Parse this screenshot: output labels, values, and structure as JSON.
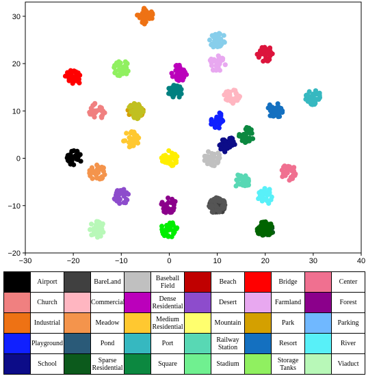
{
  "chart_data": {
    "type": "scatter",
    "title": "",
    "xlabel": "",
    "ylabel": "",
    "xlim": [
      -30,
      40
    ],
    "ylim": [
      -20,
      33
    ],
    "xticks": [
      "−30",
      "−20",
      "−10",
      "0",
      "10",
      "20",
      "30",
      "40"
    ],
    "yticks": [
      "−20",
      "−10",
      "0",
      "10",
      "20",
      "30"
    ],
    "grid": false,
    "legend": "table-below",
    "classes": [
      {
        "name": "Airport",
        "color": "#000000",
        "cx": -20,
        "cy": 0,
        "plotted": true
      },
      {
        "name": "BareLand",
        "color": "#404040",
        "cx": 10,
        "cy": -10,
        "plotted": true
      },
      {
        "name": "Baseball\nField",
        "color": "#c0c0c0",
        "cx": 9,
        "cy": 0,
        "plotted": true
      },
      {
        "name": "Beach",
        "color": "#c00000",
        "plotted": false
      },
      {
        "name": "Bridge",
        "color": "#ff0000",
        "cx": -20,
        "cy": 17,
        "plotted": true
      },
      {
        "name": "Center",
        "color": "#f07090",
        "cx": 25,
        "cy": -3,
        "plotted": true
      },
      {
        "name": "Church",
        "color": "#f08080",
        "cx": -15,
        "cy": 10,
        "plotted": true
      },
      {
        "name": "Commercial",
        "color": "#ffb6c1",
        "cx": 13,
        "cy": 13,
        "plotted": true
      },
      {
        "name": "Dense\nResidential",
        "color": "#bb00bb",
        "cx": 2,
        "cy": 18,
        "plotted": true
      },
      {
        "name": "Desert",
        "color": "#8d4ccc",
        "cx": -10,
        "cy": -8,
        "plotted": true
      },
      {
        "name": "Farmland",
        "color": "#e8a8f0",
        "cx": 10,
        "cy": 20,
        "plotted": true
      },
      {
        "name": "Forest",
        "color": "#8b008b",
        "cx": 0,
        "cy": -10,
        "plotted": true
      },
      {
        "name": "Industrial",
        "color": "#ee7214",
        "cx": -5,
        "cy": 30,
        "plotted": true
      },
      {
        "name": "Meadow",
        "color": "#f4944c",
        "cx": -15,
        "cy": -3,
        "plotted": true
      },
      {
        "name": "Medium\nResidential",
        "color": "#ffc830",
        "cx": -8,
        "cy": 4,
        "plotted": true
      },
      {
        "name": "Mountain",
        "color": "#ffff6e",
        "plotted": false
      },
      {
        "name": "Park",
        "color": "#d4a000",
        "cx": -7,
        "cy": 10,
        "plotted": true
      },
      {
        "name": "Parking",
        "color": "#70b8ff",
        "plotted": false
      },
      {
        "name": "Playground",
        "color": "#1020ff",
        "cx": 10,
        "cy": 8,
        "plotted": true
      },
      {
        "name": "Pond",
        "color": "#2a5a78",
        "plotted": false
      },
      {
        "name": "Port",
        "color": "#36b8c0",
        "cx": 30,
        "cy": 13,
        "plotted": true
      },
      {
        "name": "Railway\nStation",
        "color": "#58d8b4",
        "cx": 15,
        "cy": -5,
        "plotted": true
      },
      {
        "name": "Resort",
        "color": "#1470c0",
        "cx": 22,
        "cy": 10,
        "plotted": true
      },
      {
        "name": "River",
        "color": "#58f0f8",
        "cx": 20,
        "cy": -8,
        "plotted": true
      },
      {
        "name": "School",
        "color": "#0c0c88",
        "cx": 12,
        "cy": 3,
        "plotted": true
      },
      {
        "name": "Sparse\nResidential",
        "color": "#0c5a1c",
        "cx": 20,
        "cy": -15,
        "plotted": true
      },
      {
        "name": "Square",
        "color": "#0c8840",
        "cx": 16,
        "cy": 5,
        "plotted": true
      },
      {
        "name": "Stadium",
        "color": "#70f090",
        "plotted": false
      },
      {
        "name": "Storage\nTanks",
        "color": "#90f060",
        "cx": -10,
        "cy": 19,
        "plotted": true
      },
      {
        "name": "Viaduct",
        "color": "#b8f8b8",
        "cx": -15,
        "cy": -15,
        "plotted": true
      }
    ],
    "extra_clusters": [
      {
        "color": "#87ceeb",
        "cx": 10,
        "cy": 25
      },
      {
        "color": "#dc143c",
        "cx": 20,
        "cy": 22
      },
      {
        "color": "#008080",
        "cx": 1,
        "cy": 14
      },
      {
        "color": "#c0c020",
        "cx": -7,
        "cy": 10
      },
      {
        "color": "#ffee00",
        "cx": 0,
        "cy": 0
      },
      {
        "color": "#00ee00",
        "cx": 0,
        "cy": -15
      },
      {
        "color": "#555555",
        "cx": 10,
        "cy": -10
      },
      {
        "color": "#006400",
        "cx": 20,
        "cy": -15
      }
    ]
  }
}
